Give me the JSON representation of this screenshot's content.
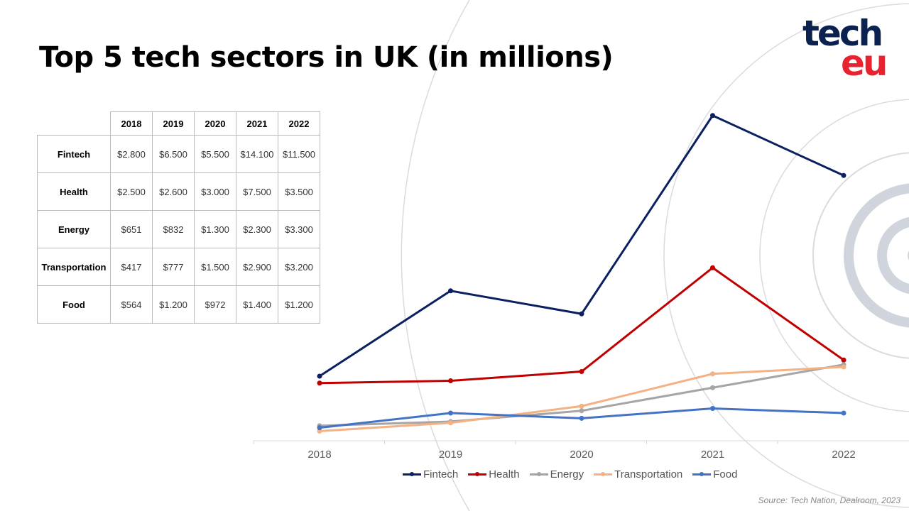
{
  "title": "Top 5 tech sectors in UK (in millions)",
  "logo": {
    "text": "tech eu",
    "colors": {
      "tech": "#0b2250",
      "eu": "#e8222e"
    }
  },
  "table": {
    "headers": [
      "2018",
      "2019",
      "2020",
      "2021",
      "2022"
    ],
    "rows": [
      {
        "label": "Fintech",
        "cells": [
          "$2.800",
          "$6.500",
          "$5.500",
          "$14.100",
          "$11.500"
        ]
      },
      {
        "label": "Health",
        "cells": [
          "$2.500",
          "$2.600",
          "$3.000",
          "$7.500",
          "$3.500"
        ]
      },
      {
        "label": "Energy",
        "cells": [
          "$651",
          "$832",
          "$1.300",
          "$2.300",
          "$3.300"
        ]
      },
      {
        "label": "Transportation",
        "cells": [
          "$417",
          "$777",
          "$1.500",
          "$2.900",
          "$3.200"
        ]
      },
      {
        "label": "Food",
        "cells": [
          "$564",
          "$1.200",
          "$972",
          "$1.400",
          "$1.200"
        ]
      }
    ]
  },
  "chart_data": {
    "type": "line",
    "categories": [
      "2018",
      "2019",
      "2020",
      "2021",
      "2022"
    ],
    "ylim": [
      0,
      16000
    ],
    "grid": false,
    "legend_position": "bottom",
    "series": [
      {
        "name": "Fintech",
        "color": "#0b2060",
        "values": [
          2800,
          6500,
          5500,
          14100,
          11500
        ]
      },
      {
        "name": "Health",
        "color": "#c00000",
        "values": [
          2500,
          2600,
          3000,
          7500,
          3500
        ]
      },
      {
        "name": "Energy",
        "color": "#a5a5a5",
        "values": [
          651,
          832,
          1300,
          2300,
          3300
        ]
      },
      {
        "name": "Transportation",
        "color": "#f4b183",
        "values": [
          417,
          777,
          1500,
          2900,
          3200
        ]
      },
      {
        "name": "Food",
        "color": "#4472c4",
        "values": [
          564,
          1200,
          972,
          1400,
          1200
        ]
      }
    ]
  },
  "source": "Source: Tech Nation,  Dealroom,  2023"
}
